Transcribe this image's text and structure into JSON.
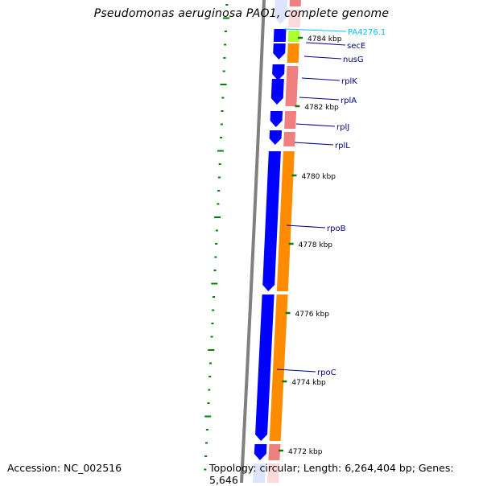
{
  "title": "Pseudomonas aeruginosa PAO1, complete genome",
  "footer": {
    "accession": "Accession: NC_002516",
    "topology": "Topology: circular; Length: 6,264,404 bp; Genes: 5,646"
  },
  "colors": {
    "backbone": "#808080",
    "forward_cds": "#0000ff",
    "forward_cds_light": "#dce4ff",
    "reverse_cds": "#ff8c00",
    "reverse_cds_pink": "#f08080",
    "reverse_cds_light": "#ffd8d8",
    "lime_gene": "#adff2f",
    "label_line": "#00008b",
    "highlight_label": "#00bfff",
    "gc_skew_tick": "#008000",
    "scale_tick": "#008000"
  },
  "ruler": [
    {
      "label": "4784 kbp"
    },
    {
      "label": "4782 kbp"
    },
    {
      "label": "4780 kbp"
    },
    {
      "label": "4778 kbp"
    },
    {
      "label": "4776 kbp"
    },
    {
      "label": "4774 kbp"
    },
    {
      "label": "4772 kbp"
    }
  ],
  "gene_labels": [
    {
      "name": "PA4276.1",
      "highlight": true
    },
    {
      "name": "secE",
      "highlight": false
    },
    {
      "name": "nusG",
      "highlight": false
    },
    {
      "name": "rplK",
      "highlight": false
    },
    {
      "name": "rplA",
      "highlight": false
    },
    {
      "name": "rplJ",
      "highlight": false
    },
    {
      "name": "rplL",
      "highlight": false
    },
    {
      "name": "rpoB",
      "highlight": false
    },
    {
      "name": "rpoC",
      "highlight": false
    }
  ]
}
